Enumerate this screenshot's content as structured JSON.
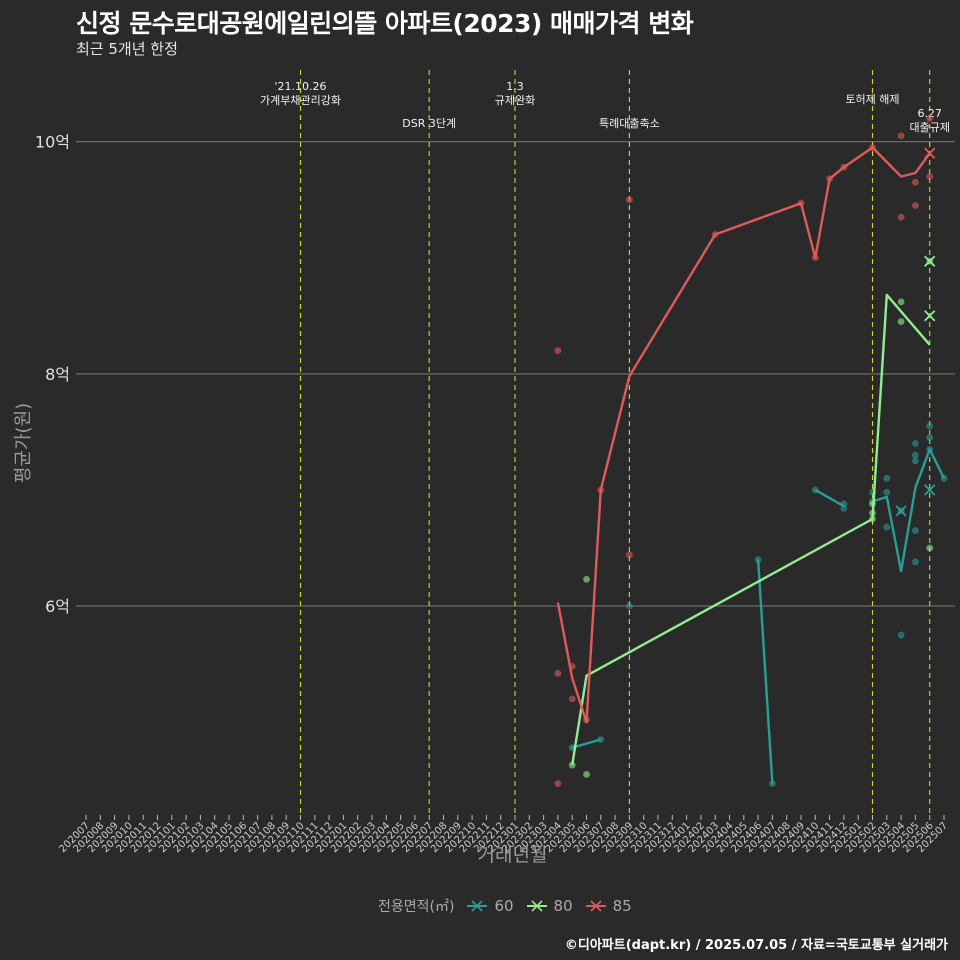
{
  "title": "신정 문수로대공원에일린의뜰 아파트(2023) 매매가격 변화",
  "subtitle": "최근 5개년 한정",
  "caption": "©디아파트(dapt.kr) / 2025.07.05 / 자료=국토교통부 실거래가",
  "chart_data": {
    "type": "line",
    "xlabel": "거래년월",
    "ylabel": "평균가(원)",
    "legend_title": "전용면적(㎡)",
    "legend_position": "bottom",
    "y_ticks": [
      {
        "value": 6,
        "label": "6억"
      },
      {
        "value": 8,
        "label": "8억"
      },
      {
        "value": 10,
        "label": "10억"
      }
    ],
    "ylim": [
      4.2,
      10.6
    ],
    "x_categories": [
      "202007",
      "202008",
      "202009",
      "202010",
      "202011",
      "202012",
      "202101",
      "202102",
      "202103",
      "202104",
      "202105",
      "202106",
      "202107",
      "202108",
      "202109",
      "202110",
      "202111",
      "202112",
      "202201",
      "202202",
      "202203",
      "202204",
      "202205",
      "202206",
      "202207",
      "202208",
      "202209",
      "202210",
      "202211",
      "202212",
      "202301",
      "202302",
      "202303",
      "202304",
      "202305",
      "202306",
      "202307",
      "202308",
      "202309",
      "202310",
      "202311",
      "202312",
      "202401",
      "202402",
      "202403",
      "202404",
      "202405",
      "202406",
      "202407",
      "202408",
      "202409",
      "202410",
      "202411",
      "202412",
      "202501",
      "202502",
      "202503",
      "202504",
      "202505",
      "202506",
      "202507"
    ],
    "events": [
      {
        "x": "202110",
        "label": "'21.10.26\n가계부채관리강화"
      },
      {
        "x": "202207",
        "label": "DSR 3단계"
      },
      {
        "x": "202301",
        "label": "1.3\n규제완화"
      },
      {
        "x": "202309",
        "label": "특례대출축소"
      },
      {
        "x": "202502",
        "label": "토허제 해제"
      },
      {
        "x": "202506",
        "label": "6.27\n대출규제"
      }
    ],
    "series": [
      {
        "name": "60",
        "color": "#2a9d96",
        "line": [
          [
            "202305",
            4.78
          ],
          [
            "202307",
            4.85
          ],
          null,
          [
            "202406",
            6.4
          ],
          [
            "202407",
            4.47
          ],
          null,
          [
            "202410",
            7.0
          ],
          [
            "202412",
            6.86
          ],
          null,
          [
            "202502",
            6.9
          ],
          [
            "202503",
            6.94
          ],
          [
            "202504",
            6.3
          ],
          [
            "202505",
            7.02
          ],
          [
            "202506",
            7.35
          ],
          [
            "202507",
            7.1
          ]
        ],
        "points": [
          [
            "202305",
            4.78
          ],
          [
            "202307",
            4.85
          ],
          [
            "202309",
            6.0
          ],
          [
            "202406",
            6.4
          ],
          [
            "202407",
            4.47
          ],
          [
            "202410",
            7.0
          ],
          [
            "202412",
            6.84
          ],
          [
            "202412",
            6.88
          ],
          [
            "202502",
            6.9
          ],
          [
            "202502",
            6.98
          ],
          [
            "202503",
            7.1
          ],
          [
            "202503",
            6.98
          ],
          [
            "202503",
            6.68
          ],
          [
            "202504",
            6.82
          ],
          [
            "202504",
            5.75
          ],
          [
            "202505",
            7.3
          ],
          [
            "202505",
            7.25
          ],
          [
            "202505",
            7.4
          ],
          [
            "202505",
            6.38
          ],
          [
            "202505",
            6.65
          ],
          [
            "202506",
            7.55
          ],
          [
            "202506",
            7.45
          ],
          [
            "202506",
            7.35
          ],
          [
            "202507",
            7.1
          ]
        ],
        "marks": [
          [
            "202504",
            6.82
          ],
          [
            "202506",
            7.0
          ]
        ]
      },
      {
        "name": "80",
        "color": "#90ee90",
        "line": [
          [
            "202305",
            4.63
          ],
          [
            "202306",
            5.4
          ],
          [
            "202502",
            6.75
          ],
          [
            "202503",
            8.68
          ],
          [
            "202506",
            8.25
          ]
        ],
        "points": [
          [
            "202305",
            4.63
          ],
          [
            "202306",
            6.23
          ],
          [
            "202306",
            4.55
          ],
          [
            "202502",
            6.75
          ],
          [
            "202502",
            6.8
          ],
          [
            "202502",
            6.88
          ],
          [
            "202504",
            8.62
          ],
          [
            "202504",
            8.45
          ],
          [
            "202506",
            8.97
          ],
          [
            "202506",
            6.5
          ]
        ],
        "marks": [
          [
            "202506",
            8.97
          ],
          [
            "202506",
            8.5
          ]
        ]
      },
      {
        "name": "85",
        "color": "#e05a5a",
        "line": [
          [
            "202304",
            6.03
          ],
          [
            "202305",
            5.38
          ],
          [
            "202306",
            5.0
          ],
          [
            "202307",
            7.0
          ],
          [
            "202309",
            7.98
          ],
          [
            "202403",
            9.2
          ],
          [
            "202409",
            9.47
          ],
          [
            "202410",
            9.0
          ],
          [
            "202411",
            9.68
          ],
          [
            "202412",
            9.78
          ],
          [
            "202502",
            9.95
          ],
          [
            "202504",
            9.7
          ],
          [
            "202505",
            9.73
          ],
          [
            "202506",
            9.9
          ]
        ],
        "points": [
          [
            "202304",
            8.2
          ],
          [
            "202304",
            5.42
          ],
          [
            "202304",
            4.47
          ],
          [
            "202305",
            5.48
          ],
          [
            "202305",
            5.2
          ],
          [
            "202306",
            5.02
          ],
          [
            "202307",
            7.0
          ],
          [
            "202309",
            9.5
          ],
          [
            "202309",
            6.44
          ],
          [
            "202403",
            9.2
          ],
          [
            "202409",
            9.47
          ],
          [
            "202410",
            9.0
          ],
          [
            "202411",
            9.68
          ],
          [
            "202412",
            9.78
          ],
          [
            "202502",
            9.95
          ],
          [
            "202504",
            10.05
          ],
          [
            "202504",
            9.35
          ],
          [
            "202505",
            9.65
          ],
          [
            "202505",
            9.45
          ],
          [
            "202506",
            9.7
          ],
          [
            "202506",
            10.2
          ]
        ],
        "marks": [
          [
            "202506",
            9.9
          ]
        ]
      }
    ]
  }
}
